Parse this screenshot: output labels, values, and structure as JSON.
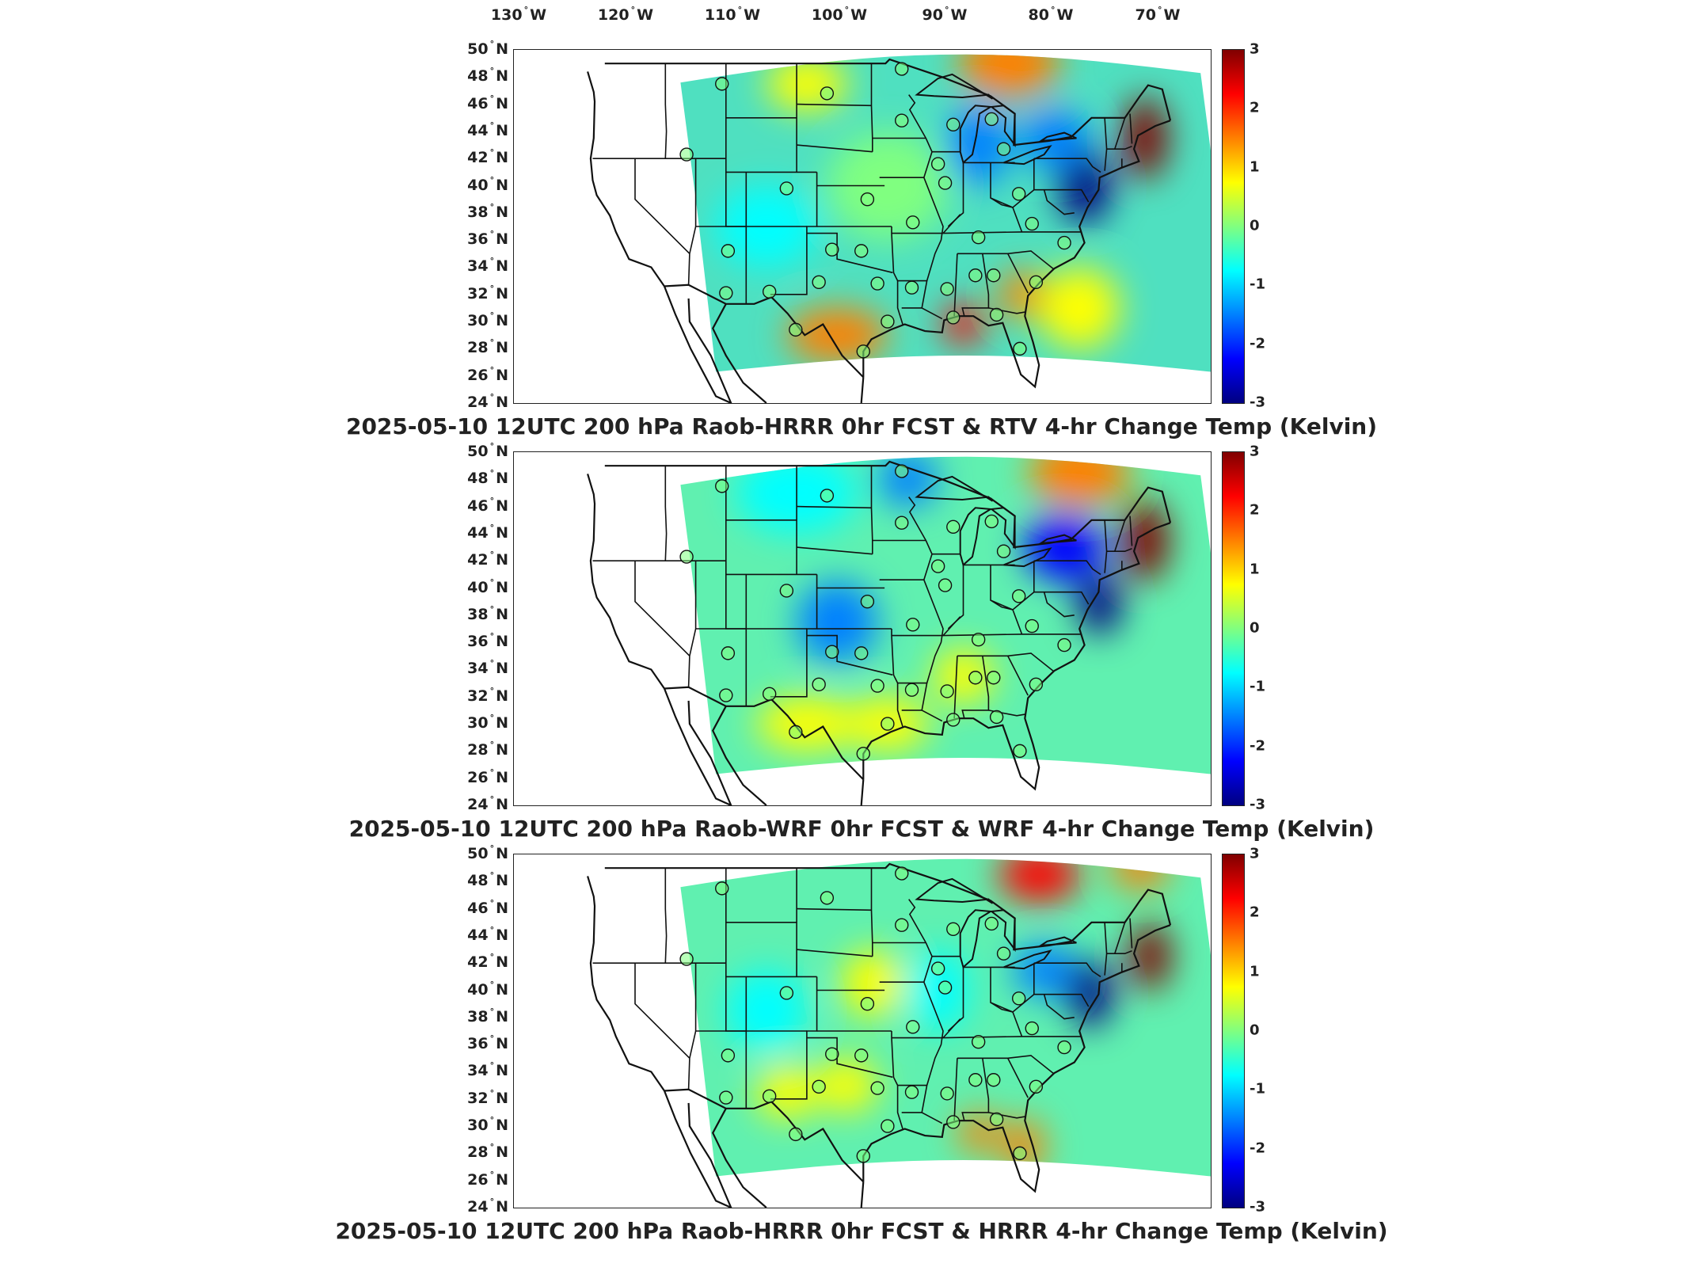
{
  "lon_labels": [
    "130",
    "120",
    "110",
    "100",
    "90",
    "80",
    "70"
  ],
  "lon_suffix": "W",
  "lat_labels": [
    "50",
    "48",
    "46",
    "44",
    "42",
    "40",
    "38",
    "36",
    "34",
    "32",
    "30",
    "28",
    "26",
    "24"
  ],
  "lat_suffix": "N",
  "colorbar": {
    "ticks": [
      "3",
      "2",
      "1",
      "0",
      "-1",
      "-2",
      "-3"
    ],
    "colormap": "jet",
    "range": [
      -3,
      3
    ],
    "colors": [
      "#800000",
      "#ff0000",
      "#ff8000",
      "#ffff00",
      "#80ff80",
      "#00ffff",
      "#0080ff",
      "#0000ff",
      "#000080"
    ]
  },
  "panels": [
    {
      "title": "2025-05-10 12UTC 200 hPa Raob-HRRR 0hr FCST & RTV 4-hr Change Temp (Kelvin)",
      "colorfield": "rtv"
    },
    {
      "title": "2025-05-10 12UTC 200 hPa Raob-WRF 0hr FCST & WRF 4-hr Change Temp (Kelvin)",
      "colorfield": "wrf"
    },
    {
      "title": "2025-05-10 12UTC 200 hPa Raob-HRRR 0hr FCST & HRRR 4-hr Change Temp (Kelvin)",
      "colorfield": "hrrr"
    }
  ],
  "raob_stations": [
    {
      "lon": -111.4,
      "lat": 47.5
    },
    {
      "lon": -101.0,
      "lat": 46.8
    },
    {
      "lon": -93.6,
      "lat": 48.6
    },
    {
      "lon": -93.6,
      "lat": 44.8
    },
    {
      "lon": -88.5,
      "lat": 44.5
    },
    {
      "lon": -84.7,
      "lat": 44.9
    },
    {
      "lon": -83.5,
      "lat": 42.7
    },
    {
      "lon": -90.0,
      "lat": 41.6
    },
    {
      "lon": -89.3,
      "lat": 40.2
    },
    {
      "lon": -82.0,
      "lat": 39.4
    },
    {
      "lon": -114.9,
      "lat": 42.3
    },
    {
      "lon": -105.0,
      "lat": 39.8
    },
    {
      "lon": -97.0,
      "lat": 39.0
    },
    {
      "lon": -92.5,
      "lat": 37.3
    },
    {
      "lon": -86.0,
      "lat": 36.2
    },
    {
      "lon": -80.7,
      "lat": 37.2
    },
    {
      "lon": -77.5,
      "lat": 35.8
    },
    {
      "lon": -80.3,
      "lat": 32.9
    },
    {
      "lon": -110.8,
      "lat": 35.2
    },
    {
      "lon": -106.7,
      "lat": 32.2
    },
    {
      "lon": -100.5,
      "lat": 35.3
    },
    {
      "lon": -97.6,
      "lat": 35.2
    },
    {
      "lon": -96.0,
      "lat": 32.8
    },
    {
      "lon": -101.8,
      "lat": 32.9
    },
    {
      "lon": -92.6,
      "lat": 32.5
    },
    {
      "lon": -89.1,
      "lat": 32.4
    },
    {
      "lon": -86.3,
      "lat": 33.4
    },
    {
      "lon": -84.5,
      "lat": 33.4
    },
    {
      "lon": -84.2,
      "lat": 30.5
    },
    {
      "lon": -81.9,
      "lat": 28.0
    },
    {
      "lon": -111.0,
      "lat": 32.1
    },
    {
      "lon": -104.1,
      "lat": 29.4
    },
    {
      "lon": -97.4,
      "lat": 27.8
    },
    {
      "lon": -95.0,
      "lat": 30.0
    },
    {
      "lon": -88.5,
      "lat": 30.3
    }
  ]
}
